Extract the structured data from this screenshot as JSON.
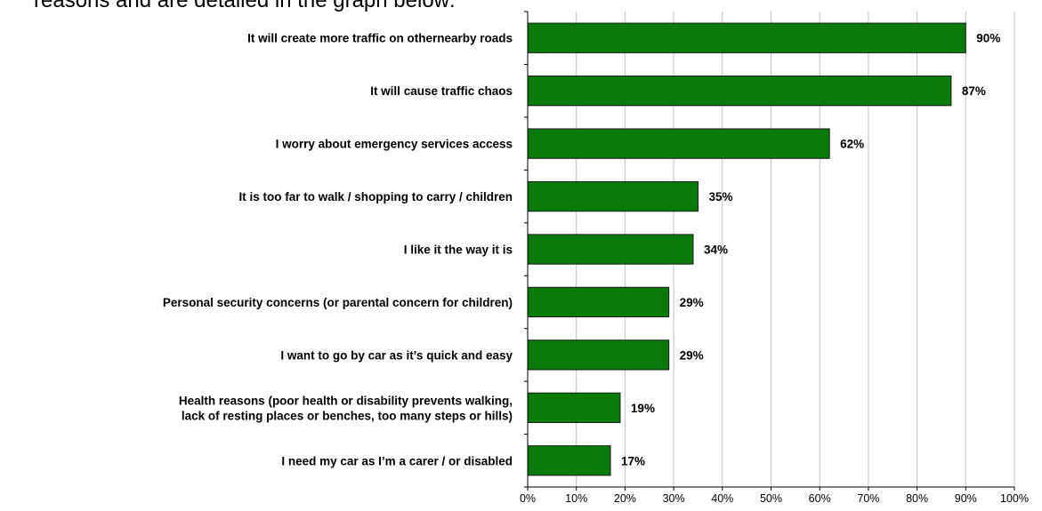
{
  "intro_text": "reasons and are detailed in the graph below:",
  "chart_data": {
    "type": "bar",
    "orientation": "horizontal",
    "categories": [
      "It will create more traffic on othernearby roads",
      "It will cause traffic chaos",
      "I worry about emergency services access",
      "It is too far to walk / shopping to carry / children",
      "I like it the way it is",
      "Personal security concerns (or parental concern for children)",
      "I want to go by car as it’s quick and easy",
      "Health reasons (poor health or disability prevents walking, lack of resting places or benches, too many steps or hills)",
      "I need my car as I’m a carer / or disabled"
    ],
    "category_lines": [
      [
        "It will create more traffic on othernearby roads"
      ],
      [
        "It will cause traffic chaos"
      ],
      [
        "I worry about emergency services access"
      ],
      [
        "It is too far to walk / shopping to carry / children"
      ],
      [
        "I like it the way it is"
      ],
      [
        "Personal security concerns (or parental concern for children)"
      ],
      [
        "I want to go by car as it’s quick and easy"
      ],
      [
        "Health reasons (poor health or disability prevents walking,",
        "lack of resting places or benches, too many steps or hills)"
      ],
      [
        "I need my car as I’m a carer / or disabled"
      ]
    ],
    "values": [
      90,
      87,
      62,
      35,
      34,
      29,
      29,
      19,
      17
    ],
    "value_labels": [
      "90%",
      "87%",
      "62%",
      "35%",
      "34%",
      "29%",
      "29%",
      "19%",
      "17%"
    ],
    "xlim": [
      0,
      100
    ],
    "x_ticks": [
      "0%",
      "10%",
      "20%",
      "30%",
      "40%",
      "50%",
      "60%",
      "70%",
      "80%",
      "90%",
      "100%"
    ],
    "grid": true,
    "bar_color": "#0a7a0a",
    "bar_edge_color": "#1a1a1a",
    "grid_color": "#c0c0c0"
  }
}
